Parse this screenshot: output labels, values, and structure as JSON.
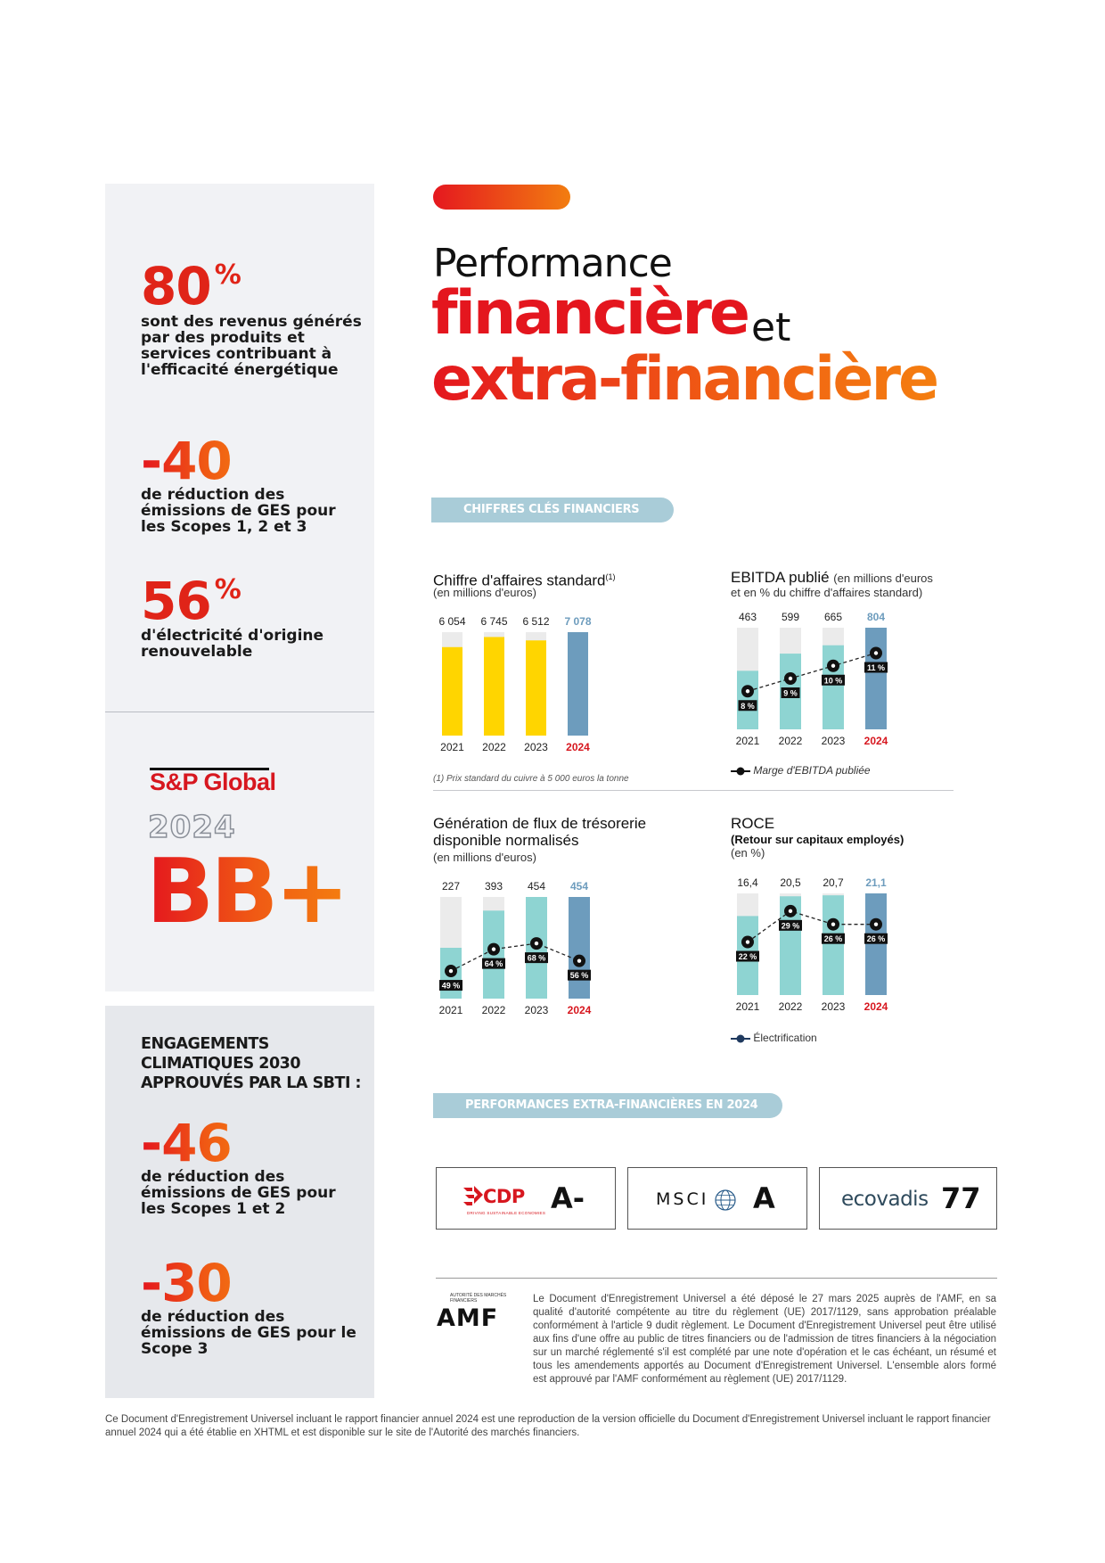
{
  "left": {
    "stat1": {
      "value": "80",
      "unit": "%",
      "desc": "sont des revenus générés par des produits et services contribuant à l'efficacité énergétique"
    },
    "stat2": {
      "value": "-40",
      "unit": "%",
      "desc": "de réduction des émissions de GES pour les Scopes 1, 2 et 3"
    },
    "stat3": {
      "value": "56",
      "unit": "%",
      "desc": "d'électricité d'origine renouvelable"
    },
    "sp": {
      "brand": "S&P Global",
      "year": "2024",
      "rating": "BB+"
    },
    "sbti": {
      "title": "ENGAGEMENTS CLIMATIQUES 2030 APPROUVÉS PAR LA SBTI :",
      "stat1": {
        "value": "-46",
        "unit": "%",
        "desc": "de réduction des émissions de GES pour les Scopes 1 et 2"
      },
      "stat2": {
        "value": "-30",
        "unit": "%",
        "desc": "de réduction des émissions de GES pour le Scope 3"
      }
    }
  },
  "header": {
    "line1": "Performance",
    "line2": "financière",
    "line2_et": "et",
    "line3": "extra-financière"
  },
  "sections": {
    "financial": "CHIFFRES CLÉS FINANCIERS",
    "extra": "PERFORMANCES EXTRA-FINANCIÈRES EN 2024"
  },
  "colors": {
    "red": "#e4161e",
    "orange": "#f27d10",
    "yellow": "#ffd500",
    "teal": "#8ed4d2",
    "steel": "#6d9cbd",
    "grey_bar": "#ebebeb",
    "year_highlight": "#d7171f"
  },
  "chart_data": [
    {
      "type": "bar",
      "title": "Chiffre d'affaires standard",
      "title_note": "(1)",
      "subtitle": "(en millions d'euros)",
      "categories": [
        "2021",
        "2022",
        "2023",
        "2024"
      ],
      "values": [
        6054,
        6745,
        6512,
        7078
      ],
      "value_labels": [
        "6 054",
        "6 745",
        "6 512",
        "7 078"
      ],
      "footnote": "(1)   Prix standard du cuivre à 5 000 euros la tonne"
    },
    {
      "type": "bar",
      "title": "EBITDA publié",
      "subtitle_inline": "(en millions d'euros",
      "subtitle": "et en % du chiffre d'affaires standard)",
      "categories": [
        "2021",
        "2022",
        "2023",
        "2024"
      ],
      "values": [
        463,
        599,
        665,
        804
      ],
      "value_labels": [
        "463",
        "599",
        "665",
        "804"
      ],
      "series": [
        {
          "name": "Marge d'EBITDA publiée",
          "values": [
            8,
            9,
            10,
            11
          ],
          "labels": [
            "8 %",
            "9 %",
            "10 %",
            "11 %"
          ]
        }
      ],
      "legend": "Marge d'EBITDA publiée"
    },
    {
      "type": "bar",
      "title": "Génération de flux de trésorerie disponible normalisés",
      "subtitle": "(en millions d'euros)",
      "categories": [
        "2021",
        "2022",
        "2023",
        "2024"
      ],
      "values": [
        227,
        393,
        454,
        454
      ],
      "value_labels": [
        "227",
        "393",
        "454",
        "454"
      ],
      "series": [
        {
          "name": "",
          "values": [
            49,
            64,
            68,
            56
          ],
          "labels": [
            "49 %",
            "64 %",
            "68 %",
            "56 %"
          ]
        }
      ]
    },
    {
      "type": "bar",
      "title": "ROCE",
      "subtitle_bold": "(Retour sur capitaux employés)",
      "subtitle": "(en %)",
      "categories": [
        "2021",
        "2022",
        "2023",
        "2024"
      ],
      "values": [
        16.4,
        20.5,
        20.7,
        21.1
      ],
      "value_labels": [
        "16,4",
        "20,5",
        "20,7",
        "21,1"
      ],
      "series": [
        {
          "name": "Électrification",
          "values": [
            22,
            29,
            26,
            26
          ],
          "labels": [
            "22 %",
            "29 %",
            "26 %",
            "26 %"
          ]
        }
      ],
      "legend": "Électrification"
    }
  ],
  "ratings": {
    "cdp": {
      "name": "CDP",
      "sub": "DRIVING SUSTAINABLE ECONOMIES",
      "value": "A-"
    },
    "msci": {
      "name": "MSCI",
      "value": "A"
    },
    "ecovadis": {
      "name": "ecovadis",
      "value": "77"
    }
  },
  "amf": {
    "logo": "AMF",
    "sub": "AUTORITÉ DES MARCHÉS FINANCIERS",
    "text": "Le Document d'Enregistrement Universel a été déposé le 27 mars 2025 auprès de l'AMF, en sa qualité d'autorité compétente au titre du règlement (UE) 2017/1129, sans approbation préalable conformément à l'article 9 dudit règlement. Le Document d'Enregistrement Universel peut être utilisé aux fins d'une offre au public de titres financiers ou de l'admission de titres financiers à la négociation sur un marché réglementé s'il est complété par une note d'opération et le cas échéant, un résumé et tous les amendements apportés au Document d'Enregistrement Universel. L'ensemble alors formé est approuvé par l'AMF conformément au règlement (UE) 2017/1129."
  },
  "bottom_text": "Ce Document d'Enregistrement Universel incluant le rapport financier annuel 2024 est une reproduction de la version officielle du Document d'Enregistrement Universel incluant le rapport financier annuel 2024 qui a été établie en XHTML et est disponible sur le site de l'Autorité des marchés financiers."
}
